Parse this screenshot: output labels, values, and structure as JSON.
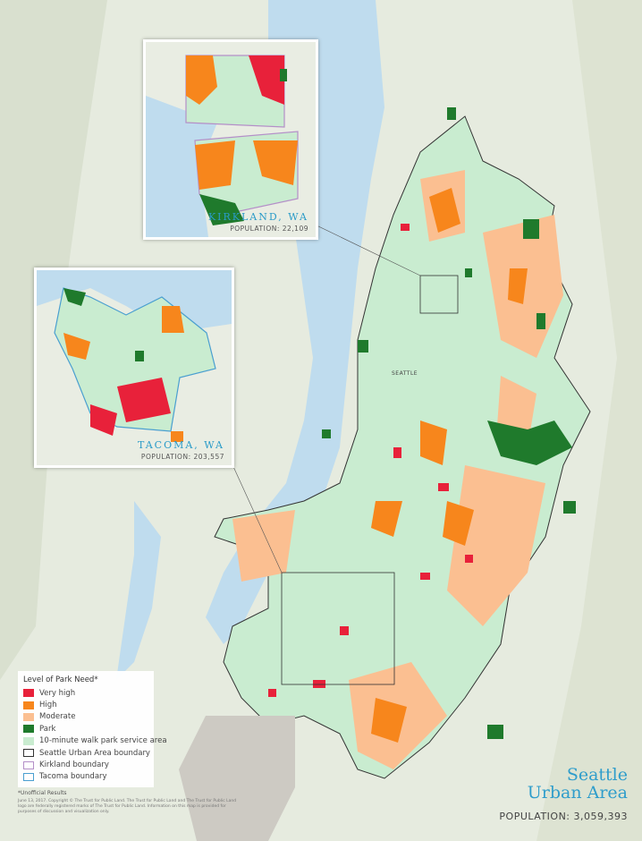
{
  "map": {
    "city_label": "SEATTLE",
    "title_line1": "Seattle",
    "title_line2": "Urban Area",
    "population": "POPULATION: 3,059,393",
    "colors": {
      "very_high": "#e8213a",
      "high": "#f7861c",
      "moderate": "#fbbf91",
      "park": "#1f7a2c",
      "walk_area": "#c9ecd0",
      "water": "#bfdcee",
      "land": "#e6ebdf",
      "title": "#2f9dcb"
    }
  },
  "insets": [
    {
      "title": "KIRKLAND, WA",
      "population": "POPULATION: 22,109"
    },
    {
      "title": "TACOMA, WA",
      "population": "POPULATION: 203,557"
    }
  ],
  "legend": {
    "title": "Level of Park Need*",
    "items": [
      {
        "label": "Very high",
        "color": "#e8213a",
        "type": "fill"
      },
      {
        "label": "High",
        "color": "#f7861c",
        "type": "fill"
      },
      {
        "label": "Moderate",
        "color": "#fbbf91",
        "type": "fill"
      },
      {
        "label": "Park",
        "color": "#1f7a2c",
        "type": "fill"
      },
      {
        "label": "10-minute walk park service area",
        "color": "#c9ecd0",
        "type": "fill"
      },
      {
        "label": "Seattle Urban Area boundary",
        "color": "#333333",
        "type": "outline"
      },
      {
        "label": "Kirkland boundary",
        "color": "#b48fc8",
        "type": "outline"
      },
      {
        "label": "Tacoma boundary",
        "color": "#4a9fd0",
        "type": "outline"
      }
    ]
  },
  "footnote": "*Unofficial Results",
  "copyright": "June 13, 2017. Copyright © The Trust for Public Land. The Trust for Public Land and The Trust for Public Land logo are federally registered marks of The Trust for Public Land. Information on this map is provided for purposes of discussion and visualization only."
}
